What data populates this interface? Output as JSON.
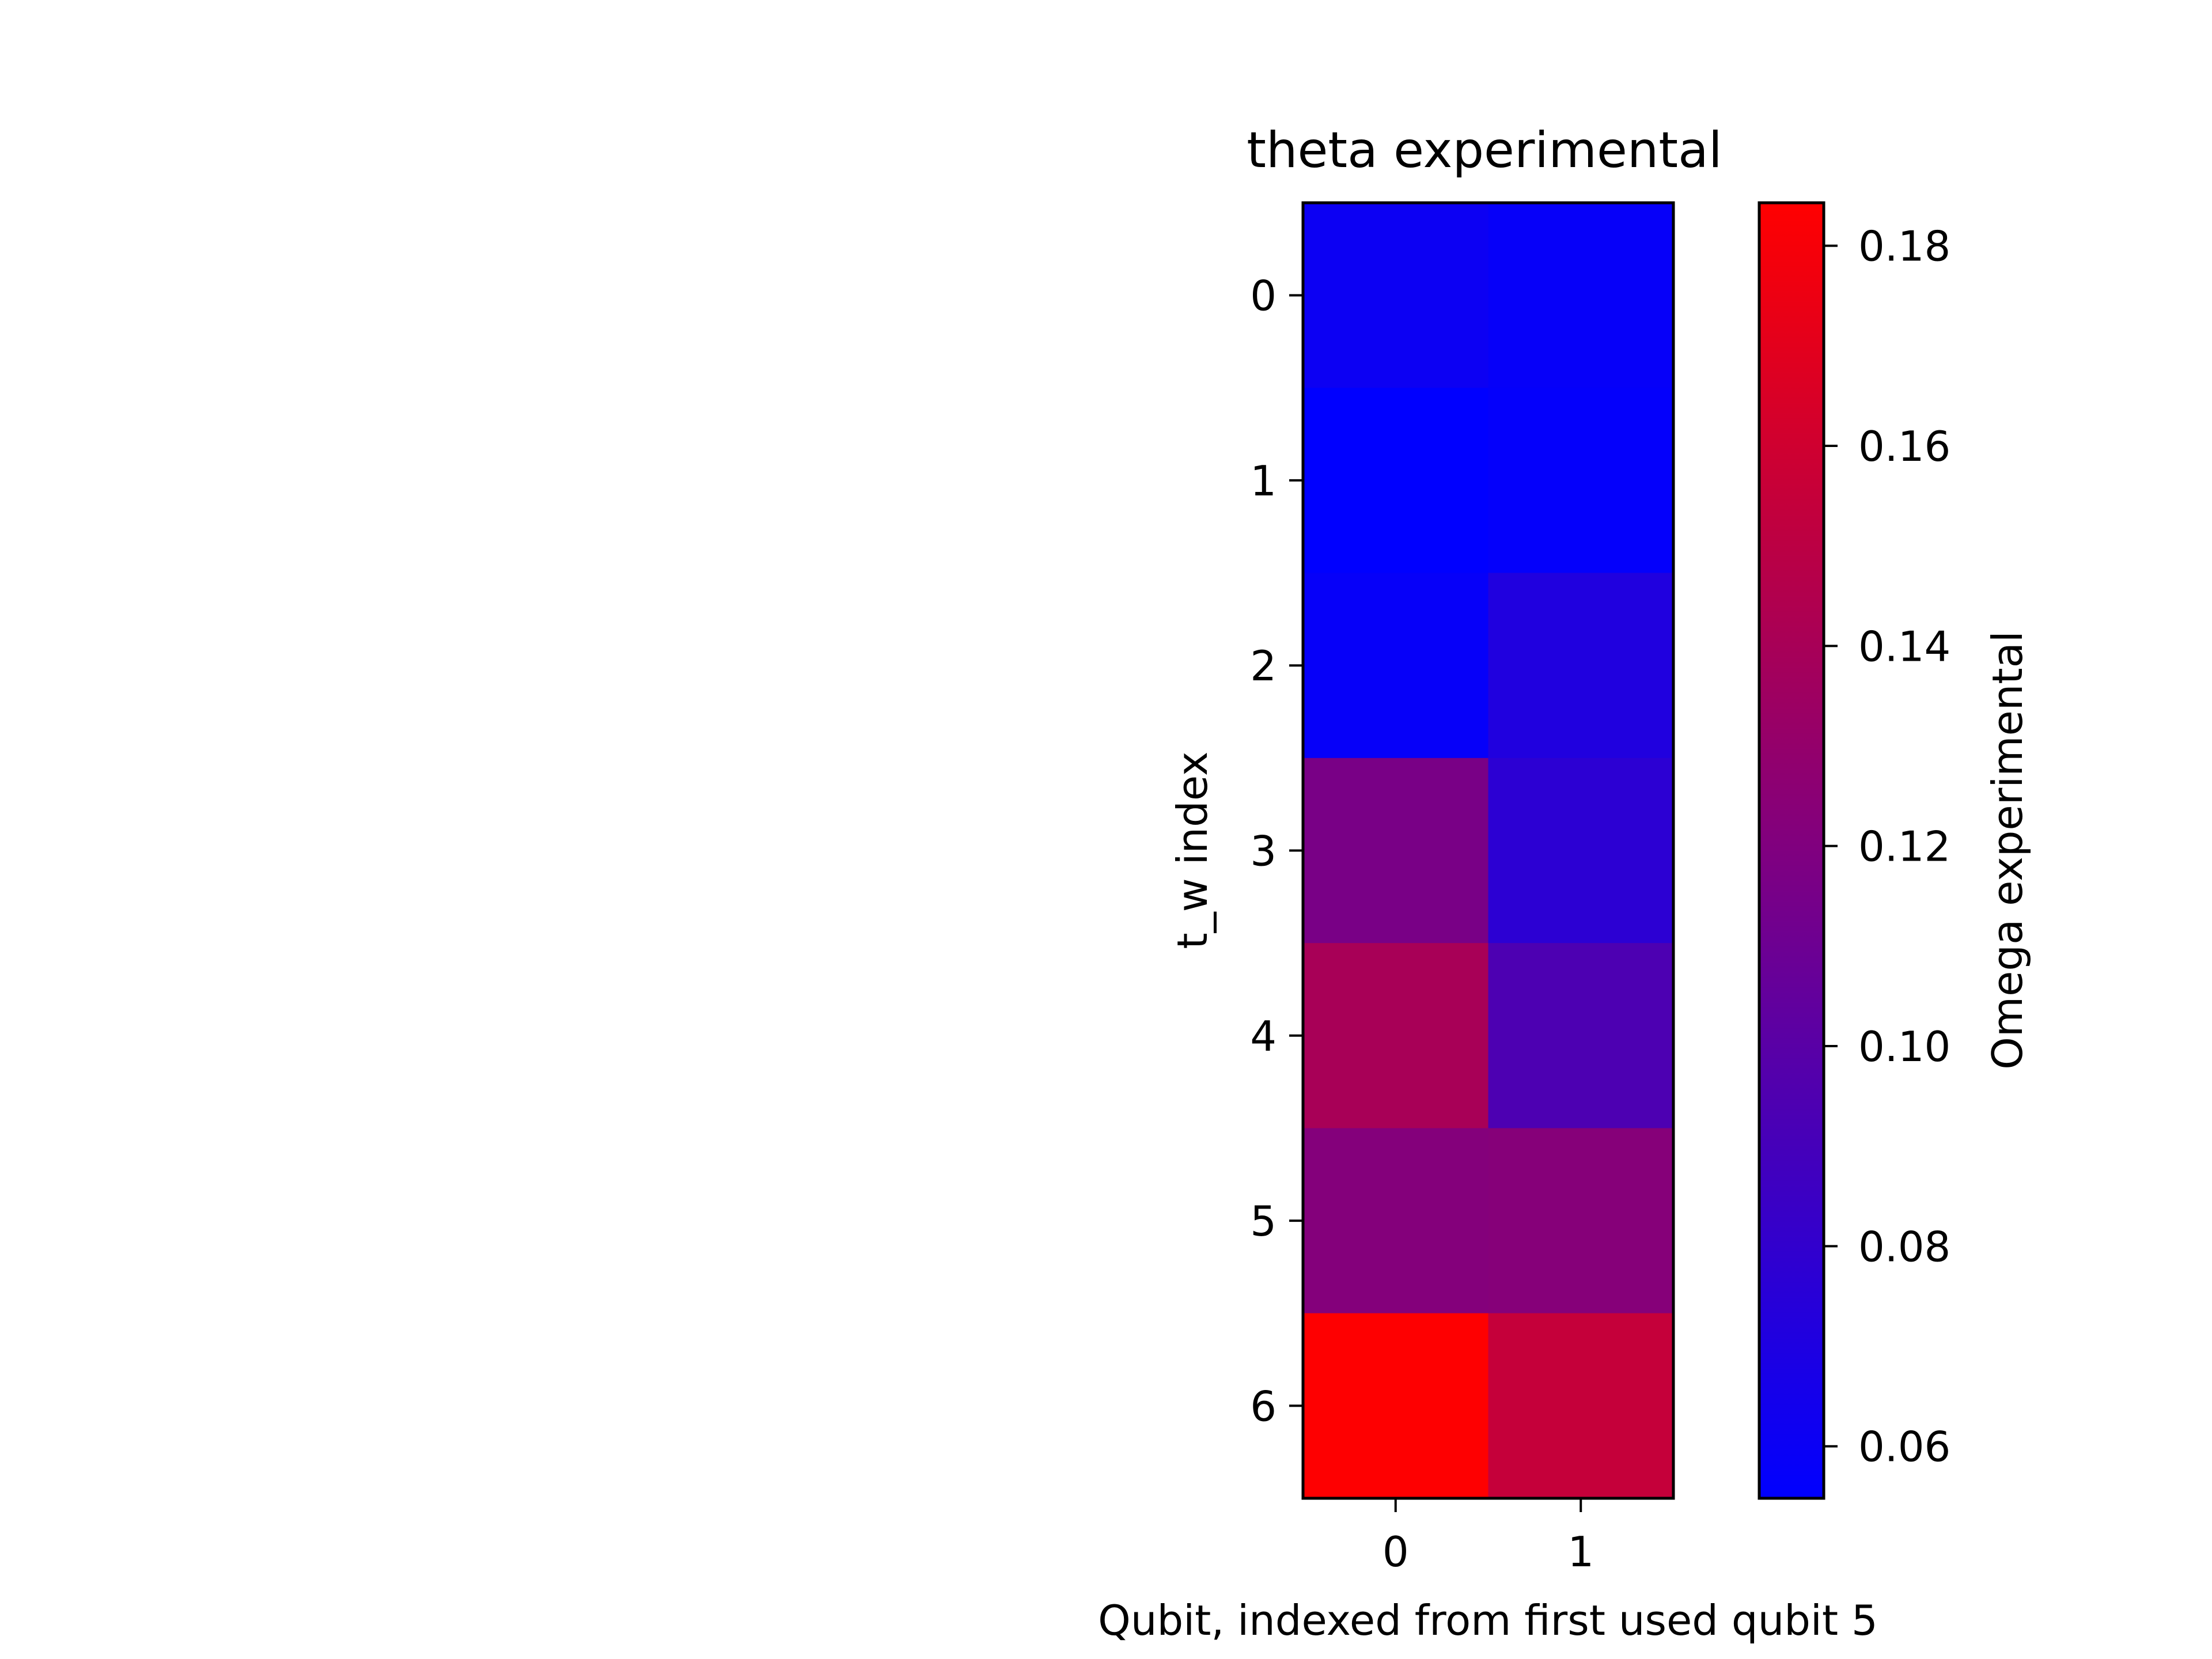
{
  "chart_data": {
    "type": "heatmap",
    "title": "theta experimental",
    "xlabel": "Qubit, indexed from first used qubit 5",
    "ylabel": "t_w index",
    "x_categories": [
      "0",
      "1"
    ],
    "y_categories": [
      "0",
      "1",
      "2",
      "3",
      "4",
      "5",
      "6"
    ],
    "values": [
      [
        0.061,
        0.058
      ],
      [
        0.055,
        0.057
      ],
      [
        0.058,
        0.071
      ],
      [
        0.116,
        0.077
      ],
      [
        0.14,
        0.094
      ],
      [
        0.122,
        0.123
      ],
      [
        0.184,
        0.155
      ]
    ],
    "colormap": {
      "low": "#0000ff",
      "high": "#ff0000"
    },
    "colorbar": {
      "label": "Omega experimental",
      "vmin": 0.0548,
      "vmax": 0.1843,
      "ticks": [
        0.06,
        0.08,
        0.1,
        0.12,
        0.14,
        0.16,
        0.18
      ],
      "tick_labels": [
        "0.06",
        "0.08",
        "0.10",
        "0.12",
        "0.14",
        "0.16",
        "0.18"
      ]
    }
  }
}
